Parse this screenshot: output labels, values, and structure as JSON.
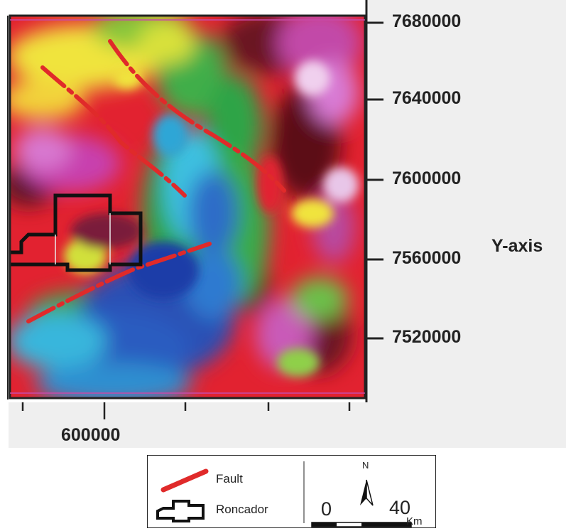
{
  "map": {
    "y_axis_title": "Y-axis",
    "y_ticks": [
      "7680000",
      "7640000",
      "7600000",
      "7560000",
      "7520000"
    ],
    "x_ticks": [
      "600000"
    ],
    "colors": {
      "fault": "#e02a2a",
      "boundary": "#111111",
      "frame": "#222222"
    },
    "layers": [
      "magnetic-anomaly-raster",
      "fault-lines",
      "roncador-boundary"
    ]
  },
  "legend": {
    "fault_label": "Fault",
    "boundary_label": "Roncador",
    "north_label": "N",
    "scale_start": "0",
    "scale_end": "40",
    "scale_unit": "Km"
  }
}
